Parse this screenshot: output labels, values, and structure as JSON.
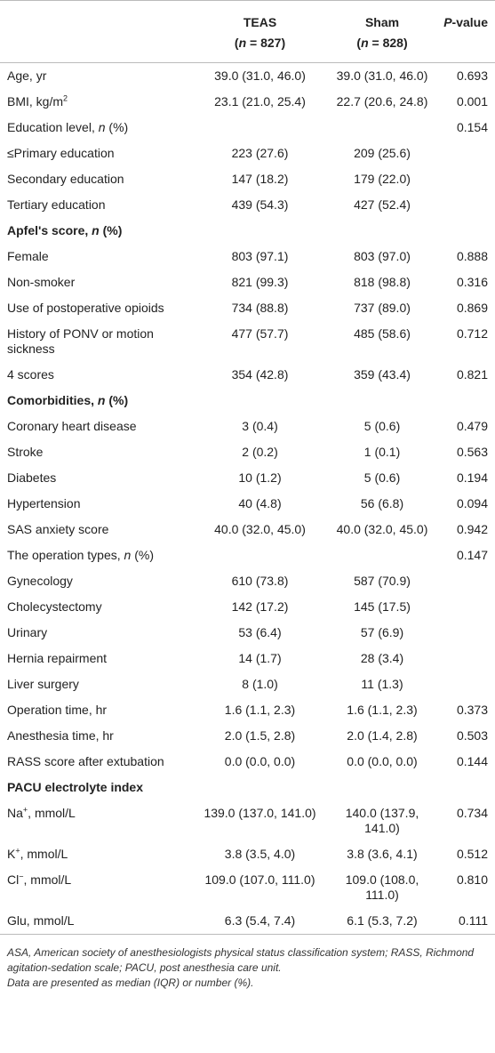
{
  "header": {
    "columns": [
      {
        "name": "TEAS",
        "n": [
          "(",
          "n",
          " = 827)"
        ]
      },
      {
        "name": "Sham",
        "n": [
          "(",
          "n",
          " = 828)"
        ]
      }
    ],
    "p_header": [
      "P",
      "-value"
    ]
  },
  "table": {
    "rows": [
      {
        "label": [
          "Age, yr"
        ],
        "teas": "39.0 (31.0, 46.0)",
        "sham": "39.0 (31.0, 46.0)",
        "p": "0.693"
      },
      {
        "label": [
          "BMI, kg/m",
          "2"
        ],
        "format": "sup",
        "teas": "23.1 (21.0, 25.4)",
        "sham": "22.7 (20.6, 24.8)",
        "p": "0.001"
      },
      {
        "label": [
          "Education level, ",
          "n",
          " (%)"
        ],
        "format": "italic",
        "p": "0.154"
      },
      {
        "label": [
          "≤Primary education"
        ],
        "teas": "223 (27.6)",
        "sham": "209 (25.6)"
      },
      {
        "label": [
          "Secondary education"
        ],
        "teas": "147 (18.2)",
        "sham": "179 (22.0)"
      },
      {
        "label": [
          "Tertiary education"
        ],
        "teas": "439 (54.3)",
        "sham": "427 (52.4)"
      },
      {
        "label": [
          "Apfel's score, ",
          "n",
          " (%)"
        ],
        "format": "italic",
        "bold": true
      },
      {
        "label": [
          "Female"
        ],
        "teas": "803 (97.1)",
        "sham": "803 (97.0)",
        "p": "0.888"
      },
      {
        "label": [
          "Non-smoker"
        ],
        "teas": "821 (99.3)",
        "sham": "818 (98.8)",
        "p": "0.316"
      },
      {
        "label": [
          "Use of postoperative opioids"
        ],
        "teas": "734 (88.8)",
        "sham": "737 (89.0)",
        "p": "0.869"
      },
      {
        "label": [
          "History of PONV or motion sickness"
        ],
        "teas": "477 (57.7)",
        "sham": "485 (58.6)",
        "p": "0.712"
      },
      {
        "label": [
          "4 scores"
        ],
        "teas": "354 (42.8)",
        "sham": "359 (43.4)",
        "p": "0.821"
      },
      {
        "label": [
          "Comorbidities, ",
          "n",
          " (%)"
        ],
        "format": "italic",
        "bold": true
      },
      {
        "label": [
          "Coronary heart disease"
        ],
        "teas": "3 (0.4)",
        "sham": "5 (0.6)",
        "p": "0.479"
      },
      {
        "label": [
          "Stroke"
        ],
        "teas": "2 (0.2)",
        "sham": "1 (0.1)",
        "p": "0.563"
      },
      {
        "label": [
          "Diabetes"
        ],
        "teas": "10 (1.2)",
        "sham": "5 (0.6)",
        "p": "0.194"
      },
      {
        "label": [
          "Hypertension"
        ],
        "teas": "40 (4.8)",
        "sham": "56 (6.8)",
        "p": "0.094"
      },
      {
        "label": [
          "SAS anxiety score"
        ],
        "teas": "40.0 (32.0, 45.0)",
        "sham": "40.0 (32.0, 45.0)",
        "p": "0.942"
      },
      {
        "label": [
          "The operation types, ",
          "n",
          " (%)"
        ],
        "format": "italic",
        "p": "0.147"
      },
      {
        "label": [
          "Gynecology"
        ],
        "teas": "610 (73.8)",
        "sham": "587 (70.9)"
      },
      {
        "label": [
          "Cholecystectomy"
        ],
        "teas": "142 (17.2)",
        "sham": "145 (17.5)"
      },
      {
        "label": [
          "Urinary"
        ],
        "teas": "53 (6.4)",
        "sham": "57 (6.9)"
      },
      {
        "label": [
          "Hernia repairment"
        ],
        "teas": "14 (1.7)",
        "sham": "28 (3.4)"
      },
      {
        "label": [
          "Liver surgery"
        ],
        "teas": "8 (1.0)",
        "sham": "11 (1.3)"
      },
      {
        "label": [
          "Operation time, hr"
        ],
        "teas": "1.6 (1.1, 2.3)",
        "sham": "1.6 (1.1, 2.3)",
        "p": "0.373"
      },
      {
        "label": [
          "Anesthesia time, hr"
        ],
        "teas": "2.0 (1.5, 2.8)",
        "sham": "2.0 (1.4, 2.8)",
        "p": "0.503"
      },
      {
        "label": [
          "RASS score after extubation"
        ],
        "teas": "0.0 (0.0, 0.0)",
        "sham": "0.0 (0.0, 0.0)",
        "p": "0.144"
      },
      {
        "label": [
          "PACU electrolyte index"
        ],
        "bold": true
      },
      {
        "label": [
          "Na",
          "+",
          ", mmol/L"
        ],
        "format": "sup",
        "teas": "139.0 (137.0, 141.0)",
        "sham": "140.0 (137.9, 141.0)",
        "p": "0.734"
      },
      {
        "label": [
          "K",
          "+",
          ", mmol/L"
        ],
        "format": "sup",
        "teas": "3.8 (3.5, 4.0)",
        "sham": "3.8 (3.6, 4.1)",
        "p": "0.512"
      },
      {
        "label": [
          "Cl",
          "−",
          ", mmol/L"
        ],
        "format": "sup",
        "teas": "109.0 (107.0, 111.0)",
        "sham": "109.0 (108.0, 111.0)",
        "p": "0.810"
      },
      {
        "label": [
          "Glu, mmol/L"
        ],
        "teas": "6.3 (5.4, 7.4)",
        "sham": "6.1 (5.3, 7.2)",
        "p": "0.111"
      }
    ]
  },
  "footnote": [
    "ASA, American society of anesthesiologists physical status classification system; RASS, Richmond agitation-sedation scale; PACU, post anesthesia care unit.",
    "Data are presented as median (IQR) or number (%)."
  ]
}
